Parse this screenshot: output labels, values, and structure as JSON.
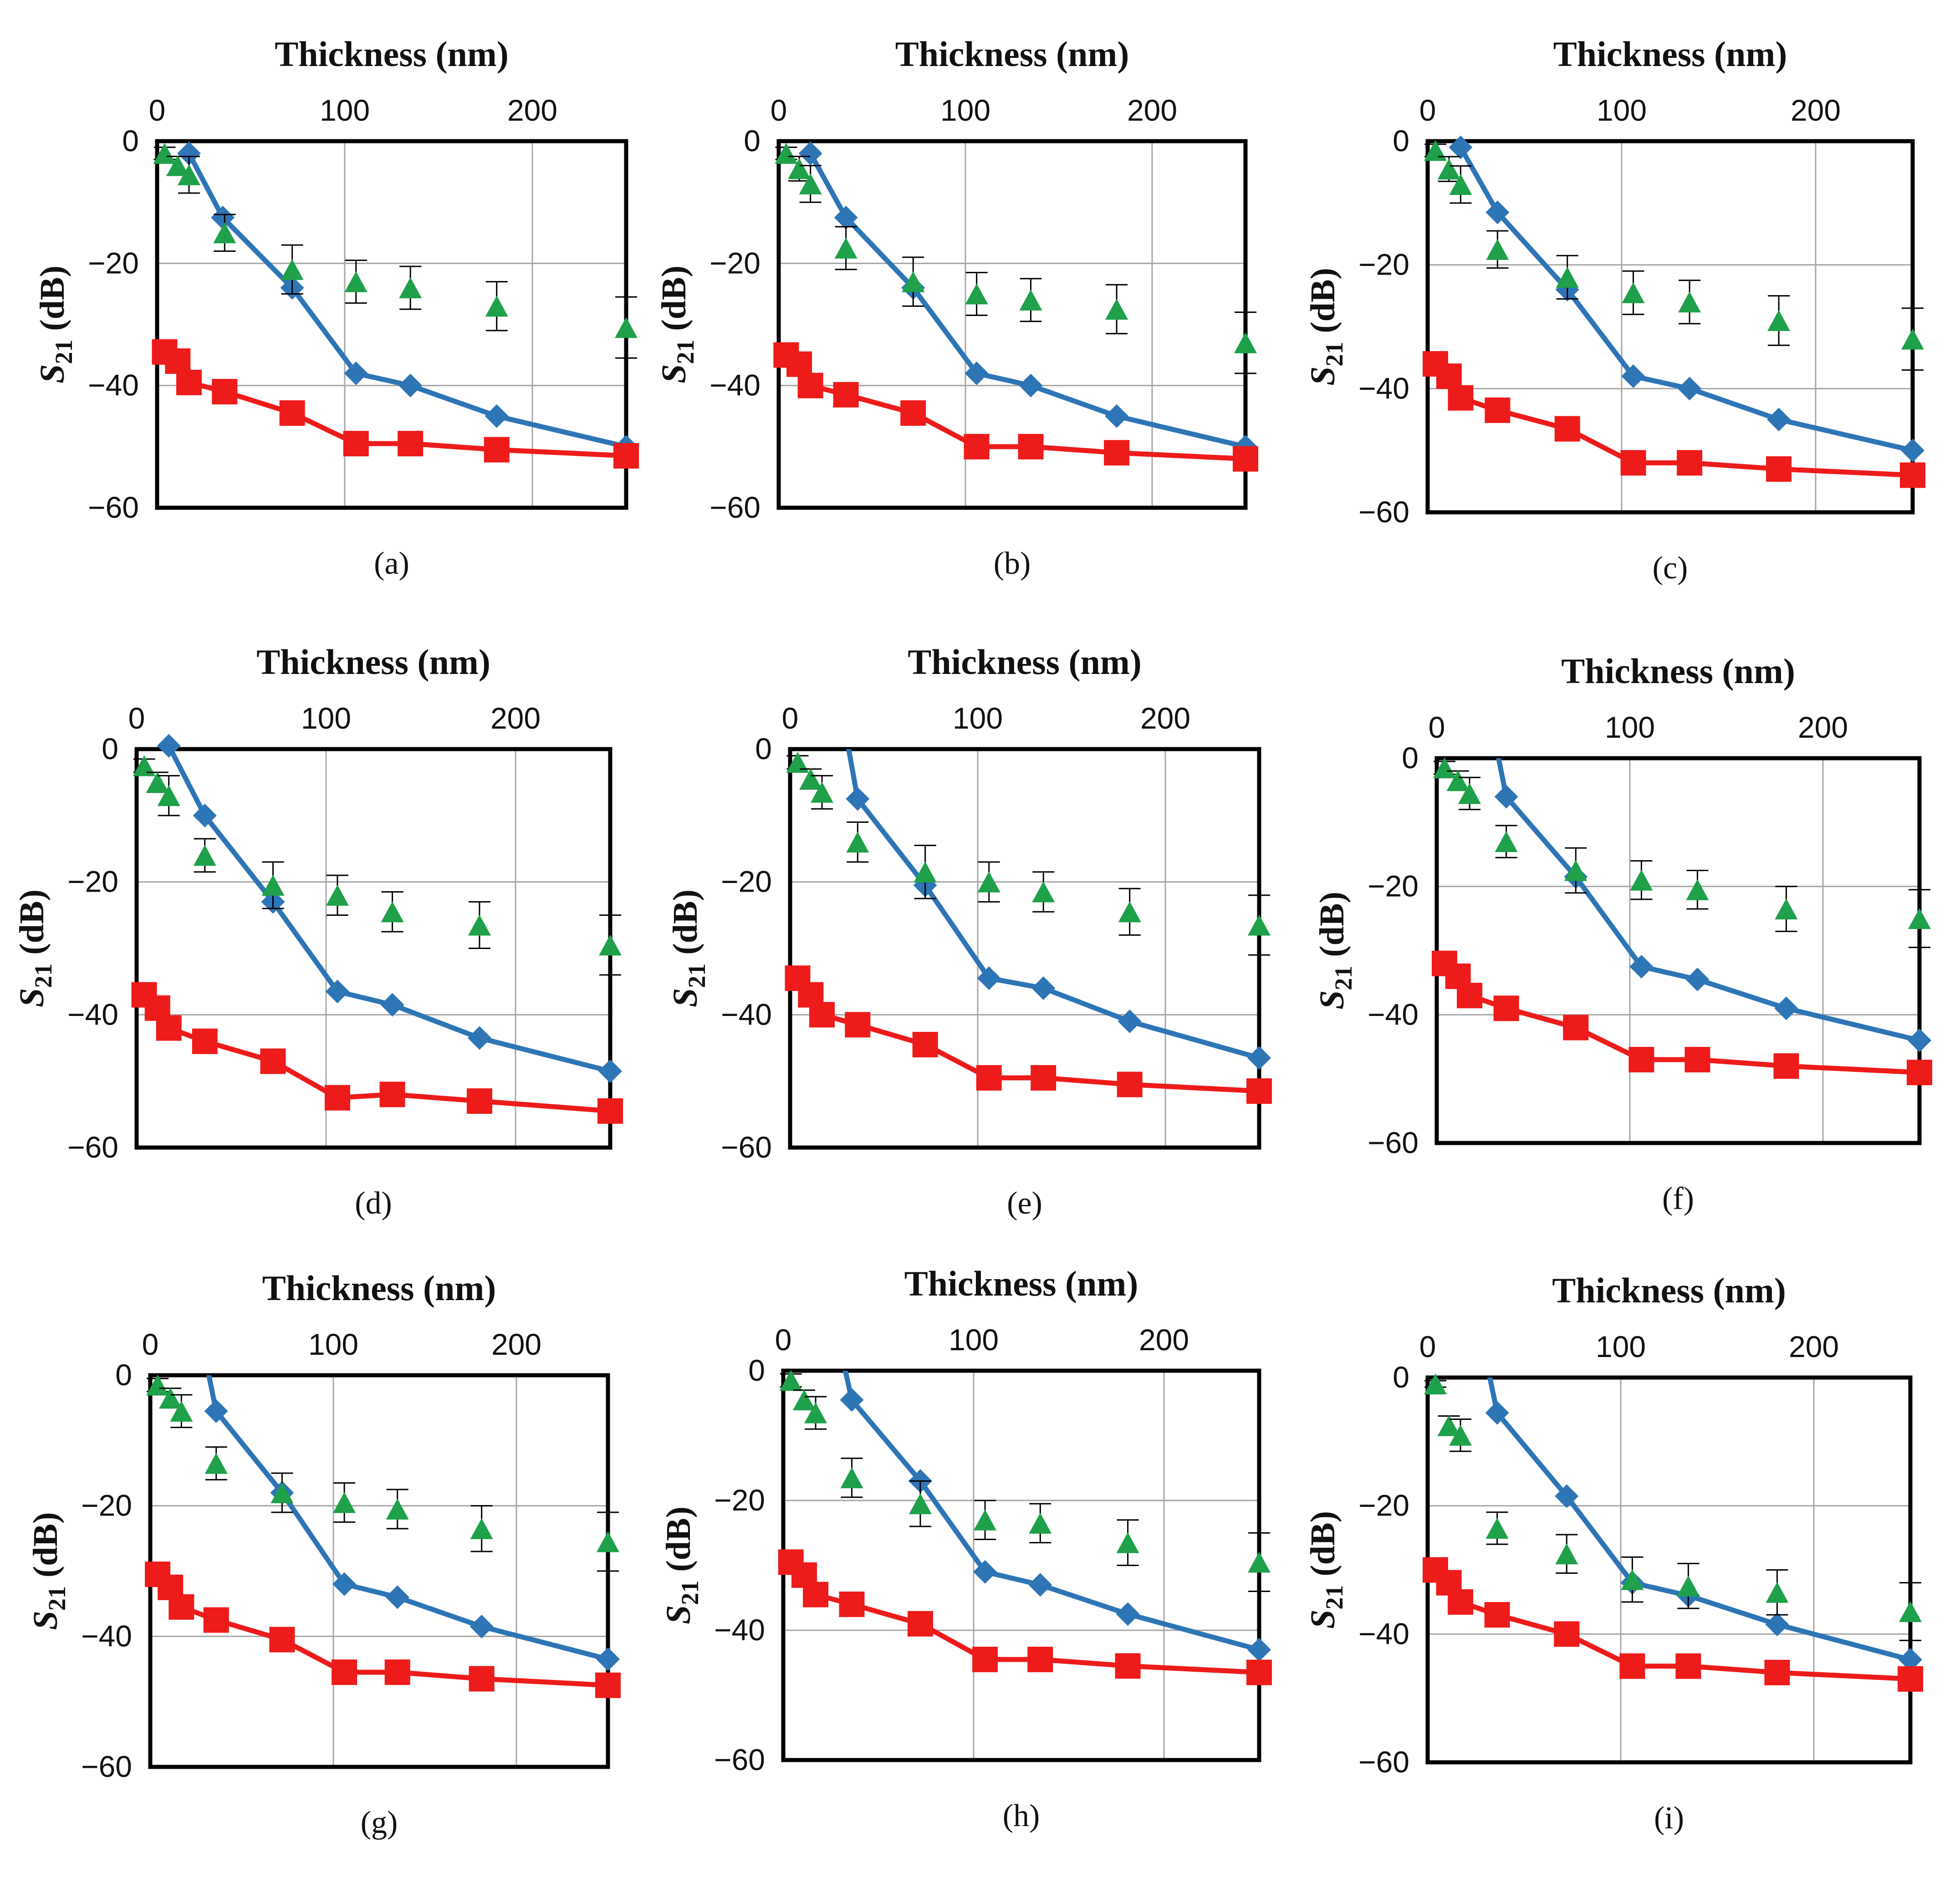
{
  "colors": {
    "blue_series": "#2E75B6",
    "red_series": "#EE1B1B",
    "green_series": "#1FA04A",
    "grid": "#A6A6A6",
    "frame": "#000000"
  },
  "chart_data": [
    {
      "type": "line",
      "panel": "(a)",
      "title": "",
      "xlabel": "Thickness (nm)",
      "ylabel": "S21 (dB)",
      "ylabel_main": "S",
      "ylabel_sub": "21",
      "ylabel_unit": " (dB)",
      "xlim": [
        0,
        250
      ],
      "ylim": [
        -60,
        0
      ],
      "xticks": [
        "0",
        "100",
        "200"
      ],
      "yticks": [
        "0",
        "−20",
        "−40",
        "−60"
      ],
      "series": [
        {
          "name": "blue-diamond",
          "marker": "diamond",
          "x": [
            17,
            35,
            72,
            106,
            135,
            181,
            250
          ],
          "y": [
            -2,
            -12.5,
            -24,
            -38,
            -40,
            -45,
            -50
          ]
        },
        {
          "name": "red-square",
          "marker": "square",
          "x": [
            4,
            11,
            17,
            36,
            72,
            106,
            135,
            181,
            250
          ],
          "y": [
            -34.5,
            -36,
            -39.5,
            -41,
            -44.5,
            -49.5,
            -49.5,
            -50.5,
            -51.5
          ]
        },
        {
          "name": "green-triangle",
          "marker": "triangle",
          "x": [
            4,
            11,
            17,
            36,
            72,
            106,
            135,
            181,
            250
          ],
          "y": [
            -2,
            -4,
            -5.5,
            -15,
            -21,
            -23,
            -24,
            -27,
            -30.5
          ],
          "err": [
            1,
            1.5,
            3,
            3,
            4,
            3.5,
            3.5,
            4,
            5
          ]
        }
      ]
    },
    {
      "type": "line",
      "panel": "(b)",
      "title": "",
      "xlabel": "Thickness (nm)",
      "ylabel": "S21 (dB)",
      "ylabel_main": "S",
      "ylabel_sub": "21",
      "ylabel_unit": " (dB)",
      "xlim": [
        0,
        250
      ],
      "ylim": [
        -60,
        0
      ],
      "xticks": [
        "0",
        "100",
        "200"
      ],
      "yticks": [
        "0",
        "−20",
        "−40",
        "−60"
      ],
      "series": [
        {
          "name": "blue-diamond",
          "marker": "diamond",
          "x": [
            17,
            36,
            72,
            106,
            135,
            181,
            250
          ],
          "y": [
            -2,
            -12.5,
            -24,
            -38,
            -40,
            -45,
            -50
          ]
        },
        {
          "name": "red-square",
          "marker": "square",
          "x": [
            4,
            11,
            17,
            36,
            72,
            106,
            135,
            181,
            250
          ],
          "y": [
            -35,
            -36.5,
            -40,
            -41.5,
            -44.5,
            -50,
            -50,
            -51,
            -52
          ]
        },
        {
          "name": "green-triangle",
          "marker": "triangle",
          "x": [
            4,
            11,
            17,
            36,
            72,
            106,
            135,
            181,
            250
          ],
          "y": [
            -2,
            -4.5,
            -7,
            -17.5,
            -23,
            -25,
            -26,
            -27.5,
            -33
          ],
          "err": [
            1,
            2,
            3,
            3.5,
            4,
            3.5,
            3.5,
            4,
            5
          ]
        }
      ]
    },
    {
      "type": "line",
      "panel": "(c)",
      "title": "",
      "xlabel": "Thickness (nm)",
      "ylabel": "S21 (dB)",
      "ylabel_main": "S",
      "ylabel_sub": "21",
      "ylabel_unit": " (dB)",
      "xlim": [
        0,
        250
      ],
      "ylim": [
        -60,
        0
      ],
      "xticks": [
        "0",
        "100",
        "200"
      ],
      "yticks": [
        "0",
        "−20",
        "−40",
        "−60"
      ],
      "series": [
        {
          "name": "blue-diamond",
          "marker": "diamond",
          "x": [
            17,
            36,
            72,
            106,
            135,
            181,
            250
          ],
          "y": [
            -1,
            -11.5,
            -24,
            -38,
            -40,
            -45,
            -50
          ]
        },
        {
          "name": "red-square",
          "marker": "square",
          "x": [
            4,
            11,
            17,
            36,
            72,
            106,
            135,
            181,
            250
          ],
          "y": [
            -36,
            -38,
            -41.5,
            -43.5,
            -46.5,
            -52,
            -52,
            -53,
            -54
          ]
        },
        {
          "name": "green-triangle",
          "marker": "triangle",
          "x": [
            4,
            11,
            17,
            36,
            72,
            106,
            135,
            181,
            250
          ],
          "y": [
            -1.5,
            -4.5,
            -7,
            -17.5,
            -22,
            -24.5,
            -26,
            -29,
            -32
          ],
          "err": [
            1,
            2,
            3,
            3,
            3.5,
            3.5,
            3.5,
            4,
            5
          ]
        }
      ]
    },
    {
      "type": "line",
      "panel": "(d)",
      "title": "",
      "xlabel": "Thickness (nm)",
      "ylabel": "S21 (dB)",
      "ylabel_main": "S",
      "ylabel_sub": "21",
      "ylabel_unit": " (dB)",
      "xlim": [
        0,
        250
      ],
      "ylim": [
        -60,
        0
      ],
      "xticks": [
        "0",
        "100",
        "200"
      ],
      "yticks": [
        "0",
        "−20",
        "−40",
        "−60"
      ],
      "series": [
        {
          "name": "blue-diamond",
          "marker": "diamond",
          "x": [
            17,
            36,
            72,
            106,
            135,
            181,
            250
          ],
          "y": [
            0.5,
            -10,
            -23,
            -36.5,
            -38.5,
            -43.5,
            -48.5
          ]
        },
        {
          "name": "red-square",
          "marker": "square",
          "x": [
            4,
            11,
            17,
            36,
            72,
            106,
            135,
            181,
            250
          ],
          "y": [
            -37,
            -39,
            -42,
            -44,
            -47,
            -52.5,
            -52,
            -53,
            -54.5
          ]
        },
        {
          "name": "green-triangle",
          "marker": "triangle",
          "x": [
            4,
            11,
            17,
            36,
            72,
            106,
            135,
            181,
            250
          ],
          "y": [
            -2.5,
            -5,
            -7,
            -16,
            -20.5,
            -22,
            -24.5,
            -26.5,
            -29.5
          ],
          "err": [
            1,
            1.5,
            3,
            2.5,
            3.5,
            3,
            3,
            3.5,
            4.5
          ]
        }
      ]
    },
    {
      "type": "line",
      "panel": "(e)",
      "title": "",
      "xlabel": "Thickness (nm)",
      "ylabel": "S21 (dB)",
      "ylabel_main": "S",
      "ylabel_sub": "21",
      "ylabel_unit": " (dB)",
      "xlim": [
        0,
        250
      ],
      "ylim": [
        -60,
        0
      ],
      "xticks": [
        "0",
        "100",
        "200"
      ],
      "yticks": [
        "0",
        "−20",
        "−40",
        "−60"
      ],
      "series": [
        {
          "name": "blue-diamond",
          "marker": "diamond",
          "x": [
            36,
            72,
            106,
            135,
            181,
            250
          ],
          "y": [
            -7.5,
            -20.5,
            -34.5,
            -36,
            -41,
            -46.5
          ]
        },
        {
          "name": "red-square",
          "marker": "square",
          "x": [
            4,
            11,
            17,
            36,
            72,
            106,
            135,
            181,
            250
          ],
          "y": [
            -34.5,
            -37,
            -40,
            -41.5,
            -44.5,
            -49.5,
            -49.5,
            -50.5,
            -51.5
          ]
        },
        {
          "name": "green-triangle",
          "marker": "triangle",
          "x": [
            4,
            11,
            17,
            36,
            72,
            106,
            135,
            181,
            250
          ],
          "y": [
            -2,
            -4.5,
            -6.5,
            -14,
            -18.5,
            -20,
            -21.5,
            -24.5,
            -26.5
          ],
          "err": [
            1,
            1.5,
            2.5,
            3,
            4,
            3,
            3,
            3.5,
            4.5
          ]
        }
      ]
    },
    {
      "type": "line",
      "panel": "(f)",
      "title": "",
      "xlabel": "Thickness (nm)",
      "ylabel": "S21 (dB)",
      "ylabel_main": "S",
      "ylabel_sub": "21",
      "ylabel_unit": " (dB)",
      "xlim": [
        0,
        250
      ],
      "ylim": [
        -60,
        0
      ],
      "xticks": [
        "0",
        "100",
        "200"
      ],
      "yticks": [
        "0",
        "−20",
        "−40",
        "−60"
      ],
      "series": [
        {
          "name": "blue-diamond",
          "marker": "diamond",
          "x": [
            36,
            72,
            106,
            135,
            181,
            250
          ],
          "y": [
            -6,
            -18.5,
            -32.5,
            -34.5,
            -39,
            -44
          ]
        },
        {
          "name": "red-square",
          "marker": "square",
          "x": [
            4,
            11,
            17,
            36,
            72,
            106,
            135,
            181,
            250
          ],
          "y": [
            -32,
            -34,
            -37,
            -39,
            -42,
            -47,
            -47,
            -48,
            -49
          ]
        },
        {
          "name": "green-triangle",
          "marker": "triangle",
          "x": [
            4,
            11,
            17,
            36,
            72,
            106,
            135,
            181,
            250
          ],
          "y": [
            -1.5,
            -3.5,
            -5.5,
            -13,
            -17.5,
            -19,
            -20.5,
            -23.5,
            -25
          ],
          "err": [
            1,
            1.5,
            2.5,
            2.5,
            3.5,
            3,
            3,
            3.5,
            4.5
          ]
        }
      ]
    },
    {
      "type": "line",
      "panel": "(g)",
      "title": "",
      "xlabel": "Thickness (nm)",
      "ylabel": "S21 (dB)",
      "ylabel_main": "S",
      "ylabel_sub": "21",
      "ylabel_unit": " (dB)",
      "xlim": [
        0,
        250
      ],
      "ylim": [
        -60,
        0
      ],
      "xticks": [
        "0",
        "100",
        "200"
      ],
      "yticks": [
        "0",
        "−20",
        "−40",
        "−60"
      ],
      "series": [
        {
          "name": "blue-diamond",
          "marker": "diamond",
          "x": [
            36,
            72,
            106,
            135,
            181,
            250
          ],
          "y": [
            -5.5,
            -18,
            -32,
            -34,
            -38.5,
            -43.5
          ]
        },
        {
          "name": "red-square",
          "marker": "square",
          "x": [
            4,
            11,
            17,
            36,
            72,
            106,
            135,
            181,
            250
          ],
          "y": [
            -30.5,
            -32.5,
            -35.5,
            -37.5,
            -40.5,
            -45.5,
            -45.5,
            -46.5,
            -47.5
          ]
        },
        {
          "name": "green-triangle",
          "marker": "triangle",
          "x": [
            4,
            11,
            17,
            36,
            72,
            106,
            135,
            181,
            250
          ],
          "y": [
            -1.5,
            -3.5,
            -5.5,
            -13.5,
            -18,
            -19.5,
            -20.5,
            -23.5,
            -25.5
          ],
          "err": [
            1,
            1.5,
            2.5,
            2.5,
            3,
            3,
            3,
            3.5,
            4.5
          ]
        }
      ]
    },
    {
      "type": "line",
      "panel": "(h)",
      "title": "",
      "xlabel": "Thickness (nm)",
      "ylabel": "S21 (dB)",
      "ylabel_main": "S",
      "ylabel_sub": "21",
      "ylabel_unit": " (dB)",
      "xlim": [
        0,
        250
      ],
      "ylim": [
        -60,
        0
      ],
      "xticks": [
        "0",
        "100",
        "200"
      ],
      "yticks": [
        "0",
        "−20",
        "−40",
        "−60"
      ],
      "series": [
        {
          "name": "blue-diamond",
          "marker": "diamond",
          "x": [
            36,
            72,
            106,
            135,
            181,
            250
          ],
          "y": [
            -4.5,
            -17,
            -31,
            -33,
            -37.5,
            -43
          ]
        },
        {
          "name": "red-square",
          "marker": "square",
          "x": [
            4,
            11,
            17,
            36,
            72,
            106,
            135,
            181,
            250
          ],
          "y": [
            -29.5,
            -31.5,
            -34.5,
            -36,
            -39,
            -44.5,
            -44.5,
            -45.5,
            -46.5
          ]
        },
        {
          "name": "green-triangle",
          "marker": "triangle",
          "x": [
            4,
            11,
            17,
            36,
            72,
            106,
            135,
            181,
            250
          ],
          "y": [
            -1.5,
            -4.5,
            -6.5,
            -16.5,
            -20.5,
            -23,
            -23.5,
            -26.5,
            -29.5
          ],
          "err": [
            1,
            1.5,
            2.5,
            3,
            3.5,
            3,
            3,
            3.5,
            4.5
          ]
        }
      ]
    },
    {
      "type": "line",
      "panel": "(i)",
      "title": "",
      "xlabel": "Thickness (nm)",
      "ylabel": "S21 (dB)",
      "ylabel_main": "S",
      "ylabel_sub": "21",
      "ylabel_unit": " (dB)",
      "xlim": [
        0,
        250
      ],
      "ylim": [
        -60,
        0
      ],
      "xticks": [
        "0",
        "100",
        "200"
      ],
      "yticks": [
        "0",
        "−20",
        "−40",
        "−60"
      ],
      "series": [
        {
          "name": "blue-diamond",
          "marker": "diamond",
          "x": [
            36,
            72,
            106,
            135,
            181,
            250
          ],
          "y": [
            -5.5,
            -18.5,
            -32,
            -34,
            -38.5,
            -44
          ]
        },
        {
          "name": "red-square",
          "marker": "square",
          "x": [
            4,
            11,
            17,
            36,
            72,
            106,
            135,
            181,
            250
          ],
          "y": [
            -30,
            -32,
            -35,
            -37,
            -40,
            -45,
            -45,
            -46,
            -47
          ]
        },
        {
          "name": "green-triangle",
          "marker": "triangle",
          "x": [
            4,
            11,
            17,
            36,
            72,
            106,
            135,
            181,
            250
          ],
          "y": [
            -1,
            -7.5,
            -9,
            -23.5,
            -27.5,
            -31.5,
            -32.5,
            -33.5,
            -36.5
          ],
          "err": [
            0.5,
            1.5,
            2.5,
            2.5,
            3,
            3.5,
            3.5,
            3.5,
            4.5
          ]
        }
      ]
    }
  ]
}
